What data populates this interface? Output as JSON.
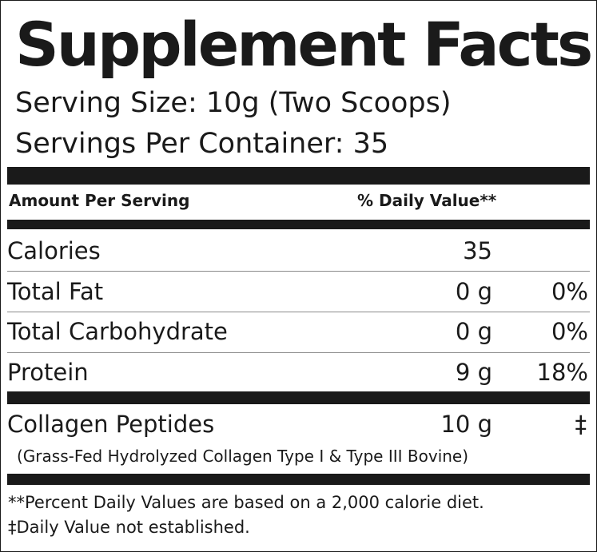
{
  "title": "Supplement Facts",
  "serving_size": "Serving Size: 10g (Two Scoops)",
  "servings_per_container": "Servings Per Container: 35",
  "header": {
    "amount": "Amount Per Serving",
    "daily_value": "% Daily Value**"
  },
  "rows": [
    {
      "name": "Calories",
      "amount": "35",
      "dv": ""
    },
    {
      "name": "Total Fat",
      "amount": "0 g",
      "dv": "0%"
    },
    {
      "name": "Total Carbohydrate",
      "amount": "0 g",
      "dv": "0%"
    },
    {
      "name": "Protein",
      "amount": "9 g",
      "dv": "18%"
    }
  ],
  "collagen": {
    "name": "Collagen Peptides",
    "amount": "10 g",
    "dv": "‡",
    "description": "(Grass-Fed Hydrolyzed Collagen Type I & Type III Bovine)"
  },
  "footnotes": [
    "**Percent Daily Values are based on a 2,000 calorie diet.",
    "‡Daily Value not established."
  ],
  "colors": {
    "ink": "#1a1a1a",
    "rule": "#8a8a8a",
    "background": "#ffffff"
  }
}
